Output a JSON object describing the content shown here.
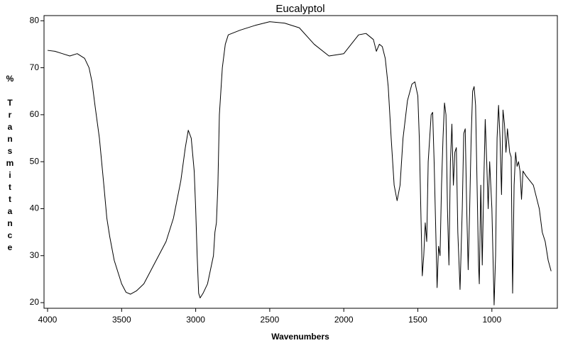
{
  "chart_data": {
    "type": "line",
    "title": "Eucalyptol",
    "x_label": "Wavenumbers",
    "y_label": "% Transmittance",
    "xlim": [
      4024,
      558
    ],
    "ylim": [
      18.8,
      81.1
    ],
    "xticks": [
      4000,
      3500,
      3000,
      2500,
      2000,
      1500,
      1000
    ],
    "yticks": [
      20,
      30,
      40,
      50,
      60,
      70,
      80
    ],
    "grid": false,
    "x": [
      4000,
      3950,
      3900,
      3850,
      3800,
      3750,
      3720,
      3700,
      3680,
      3650,
      3620,
      3600,
      3580,
      3550,
      3520,
      3500,
      3470,
      3440,
      3400,
      3350,
      3300,
      3250,
      3200,
      3150,
      3100,
      3070,
      3050,
      3030,
      3010,
      3000,
      2990,
      2980,
      2970,
      2950,
      2920,
      2900,
      2880,
      2870,
      2860,
      2850,
      2840,
      2820,
      2800,
      2780,
      2700,
      2600,
      2500,
      2400,
      2300,
      2200,
      2100,
      2000,
      1950,
      1900,
      1850,
      1800,
      1780,
      1760,
      1740,
      1720,
      1700,
      1680,
      1660,
      1640,
      1620,
      1600,
      1570,
      1540,
      1520,
      1500,
      1490,
      1480,
      1470,
      1460,
      1450,
      1440,
      1430,
      1410,
      1400,
      1390,
      1375,
      1370,
      1360,
      1350,
      1340,
      1330,
      1320,
      1310,
      1300,
      1290,
      1280,
      1270,
      1260,
      1250,
      1240,
      1230,
      1215,
      1200,
      1190,
      1180,
      1170,
      1160,
      1150,
      1140,
      1130,
      1120,
      1110,
      1100,
      1090,
      1085,
      1075,
      1065,
      1055,
      1045,
      1035,
      1025,
      1015,
      1000,
      985,
      975,
      965,
      955,
      945,
      935,
      925,
      915,
      905,
      895,
      880,
      870,
      860,
      850,
      840,
      830,
      820,
      810,
      800,
      790,
      770,
      720,
      680,
      660,
      640,
      620,
      600
    ],
    "series": [
      {
        "name": "Eucalyptol",
        "color": "#000000",
        "values": [
          73.7,
          73.5,
          73,
          72.5,
          73,
          72,
          70,
          67,
          62,
          55,
          45,
          38,
          34,
          29,
          26,
          24,
          22.2,
          21.8,
          22.5,
          24,
          27,
          30,
          33,
          38,
          46,
          53,
          56.7,
          55,
          48,
          40,
          30,
          22,
          21,
          22,
          24,
          27,
          30,
          35,
          37,
          45,
          60,
          70,
          75,
          77,
          78,
          79,
          79.8,
          79.5,
          78.5,
          75,
          72.5,
          73,
          75,
          77,
          77.3,
          76,
          73.5,
          75,
          74.5,
          72,
          66,
          55,
          45,
          41.7,
          45,
          55,
          63,
          66.5,
          67,
          64,
          55,
          40,
          25.7,
          30,
          37,
          33,
          50,
          60,
          60.5,
          50,
          30,
          23.2,
          32,
          30,
          45,
          55,
          62.5,
          60,
          40,
          28,
          50,
          58,
          45,
          52,
          53,
          35,
          22.8,
          40,
          56,
          57,
          40,
          27,
          40,
          55,
          65,
          66,
          62,
          45,
          28,
          24,
          45,
          28,
          45,
          59,
          50,
          40,
          50,
          40,
          19.5,
          30,
          55,
          62,
          55,
          43,
          61,
          58,
          52,
          57,
          52,
          51,
          22,
          45,
          52,
          49,
          50,
          48,
          42,
          48,
          47,
          45,
          40,
          35,
          33,
          29,
          26.7
        ]
      }
    ]
  }
}
